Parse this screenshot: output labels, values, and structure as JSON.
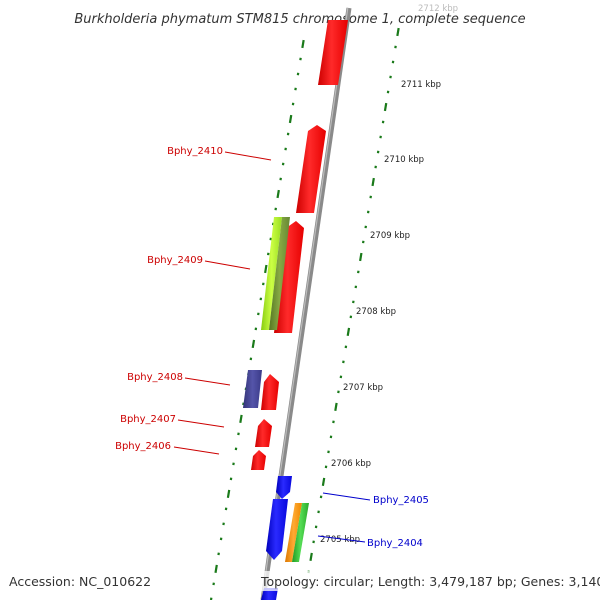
{
  "title": "Burkholderia phymatum STM815 chromosome 1, complete sequence",
  "accession_label": "Accession: NC_010622",
  "topology_label": "Topology: circular; Length: 3,479,187 bp; Genes: 3,140",
  "colors": {
    "backbone": "#8a8a8a",
    "tick": "#1a7a1a",
    "forward_label": "#cc0000",
    "reverse_label": "#0000cc",
    "red_gene": "#ff1a1a",
    "blue_gene": "#1010ee",
    "purple_gene": "#444499",
    "lime_gene": "#aaee22",
    "olive_gene": "#779933",
    "orange_gene": "#ff9910",
    "green_gene": "#33bb33"
  },
  "kbp_labels": [
    "2712 kbp",
    "2711 kbp",
    "2710 kbp",
    "2709 kbp",
    "2708 kbp",
    "2707 kbp",
    "2706 kbp",
    "2705 kbp"
  ],
  "gene_labels": {
    "bphy_2410": "Bphy_2410",
    "bphy_2409": "Bphy_2409",
    "bphy_2408": "Bphy_2408",
    "bphy_2407": "Bphy_2407",
    "bphy_2406": "Bphy_2406",
    "bphy_2405": "Bphy_2405",
    "bphy_2404": "Bphy_2404"
  }
}
